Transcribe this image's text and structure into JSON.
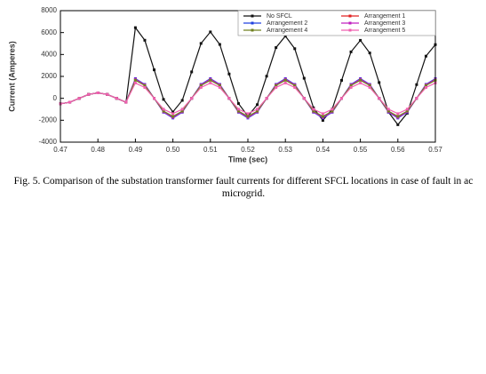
{
  "chart_data": {
    "type": "line",
    "xlabel": "Time (sec)",
    "ylabel": "Current (Amperes)",
    "caption": "Fig. 5. Comparison of the substation transformer fault currents for different SFCL locations in case of fault in ac microgrid.",
    "xlim": [
      0.47,
      0.57
    ],
    "ylim": [
      -4000,
      8000
    ],
    "xticks": [
      0.47,
      0.48,
      0.49,
      {
        "value": 0.5,
        "label": "0.50"
      },
      0.51,
      0.52,
      0.53,
      0.54,
      0.55,
      0.56,
      0.57
    ],
    "yticks": [
      -4000,
      -2000,
      0,
      2000,
      4000,
      6000,
      8000
    ],
    "legend": "upper right",
    "x": [
      0.47,
      0.4725,
      0.475,
      0.4775,
      0.48,
      0.4825,
      0.485,
      0.4875,
      0.49,
      0.4925,
      0.495,
      0.4975,
      0.5,
      0.5025,
      0.505,
      0.5075,
      0.51,
      0.5125,
      0.515,
      0.5175,
      0.52,
      0.5225,
      0.525,
      0.5275,
      0.53,
      0.5325,
      0.535,
      0.5375,
      0.54,
      0.5425,
      0.545,
      0.5475,
      0.55,
      0.5525,
      0.555,
      0.5575,
      0.56,
      0.5625,
      0.565,
      0.5675,
      0.57
    ],
    "series": [
      {
        "name": "No SFCL",
        "color": "#111111",
        "values": [
          -500,
          -354,
          0,
          354,
          500,
          354,
          0,
          -354,
          6450,
          5300,
          2600,
          -100,
          -1240,
          -190,
          2410,
          5010,
          6060,
          4920,
          2220,
          -480,
          -1630,
          -580,
          2020,
          4630,
          5680,
          4530,
          1830,
          -870,
          -2020,
          -970,
          1640,
          4240,
          5290,
          4140,
          1440,
          -1260,
          -2410,
          -1360,
          1250,
          3850,
          4900
        ]
      },
      {
        "name": "Arrangement 1",
        "color": "#e02020",
        "values": [
          -500,
          -354,
          0,
          354,
          500,
          354,
          0,
          -354,
          1700,
          1202,
          0,
          -1202,
          -1700,
          -1202,
          0,
          1202,
          1700,
          1202,
          0,
          -1202,
          -1700,
          -1202,
          0,
          1202,
          1700,
          1202,
          0,
          -1202,
          -1700,
          -1202,
          0,
          1202,
          1700,
          1202,
          0,
          -1202,
          -1700,
          -1202,
          0,
          1202,
          1700
        ]
      },
      {
        "name": "Arrangement 2",
        "color": "#2040e0",
        "values": [
          -500,
          -354,
          0,
          354,
          500,
          354,
          0,
          -354,
          1800,
          1273,
          0,
          -1273,
          -1800,
          -1273,
          0,
          1273,
          1800,
          1273,
          0,
          -1273,
          -1800,
          -1273,
          0,
          1273,
          1800,
          1273,
          0,
          -1273,
          -1800,
          -1273,
          0,
          1273,
          1800,
          1273,
          0,
          -1273,
          -1800,
          -1273,
          0,
          1273,
          1800
        ]
      },
      {
        "name": "Arrangement 3",
        "color": "#c020c0",
        "values": [
          -500,
          -354,
          0,
          354,
          500,
          354,
          0,
          -354,
          1750,
          1237,
          0,
          -1237,
          -1750,
          -1237,
          0,
          1237,
          1750,
          1237,
          0,
          -1237,
          -1750,
          -1237,
          0,
          1237,
          1750,
          1237,
          0,
          -1237,
          -1750,
          -1237,
          0,
          1237,
          1750,
          1237,
          0,
          -1237,
          -1750,
          -1237,
          0,
          1237,
          1750
        ]
      },
      {
        "name": "Arrangement 4",
        "color": "#708020",
        "values": [
          -500,
          -354,
          0,
          354,
          500,
          354,
          0,
          -354,
          1650,
          1167,
          0,
          -1167,
          -1650,
          -1167,
          0,
          1167,
          1650,
          1167,
          0,
          -1167,
          -1650,
          -1167,
          0,
          1167,
          1650,
          1167,
          0,
          -1167,
          -1650,
          -1167,
          0,
          1167,
          1650,
          1167,
          0,
          -1167,
          -1650,
          -1167,
          0,
          1167,
          1650
        ]
      },
      {
        "name": "Arrangement 5",
        "color": "#f060b0",
        "values": [
          -500,
          -354,
          0,
          354,
          500,
          354,
          0,
          -354,
          1400,
          990,
          0,
          -990,
          -1400,
          -990,
          0,
          990,
          1400,
          990,
          0,
          -990,
          -1400,
          -990,
          0,
          990,
          1400,
          990,
          0,
          -990,
          -1400,
          -990,
          0,
          990,
          1400,
          990,
          0,
          -990,
          -1400,
          -990,
          0,
          990,
          1400
        ]
      }
    ]
  }
}
